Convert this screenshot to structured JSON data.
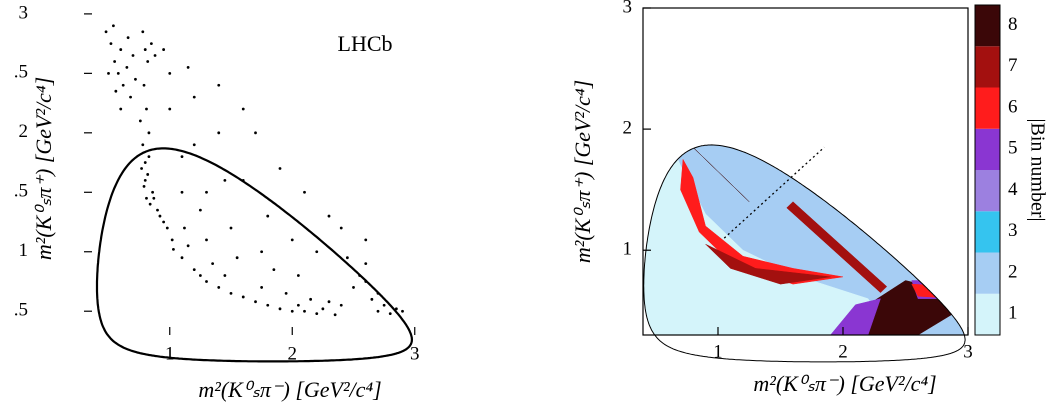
{
  "chart_data": [
    {
      "type": "scatter",
      "annotation": "LHCb",
      "x_label": "m²(K⁰ₛπ⁻) [GeV²/c⁴]",
      "y_label": "m²(K⁰ₛπ⁺) [GeV²/c⁴]",
      "color": "#000000",
      "x": [
        0.48,
        0.52,
        0.55,
        0.58,
        0.6,
        0.62,
        0.65,
        0.5,
        0.56,
        0.66,
        0.7,
        0.72,
        0.68,
        0.54,
        0.6,
        0.78,
        0.8,
        0.82,
        0.79,
        0.81,
        0.83,
        0.78,
        0.8,
        0.82,
        0.79,
        0.81,
        0.84,
        0.77,
        0.8,
        0.86,
        0.83,
        0.76,
        0.85,
        0.88,
        0.9,
        0.92,
        0.95,
        0.98,
        0.87,
        1.02,
        1.03,
        1.1,
        1.15,
        1.2,
        1.25,
        1.3,
        1.35,
        1.4,
        1.45,
        1.5,
        1.12,
        1.3,
        1.6,
        1.7,
        1.8,
        1.9,
        2.0,
        2.05,
        2.1,
        2.15,
        2.2,
        2.25,
        2.3,
        1.75,
        1.95,
        2.35,
        2.4,
        2.5,
        2.55,
        2.6,
        2.65,
        2.7,
        2.75,
        2.8,
        2.85,
        2.6,
        2.45,
        2.7,
        2.9,
        1.0,
        1.2,
        1.4,
        1.1,
        1.3,
        1.6,
        1.8,
        1.5,
        2.0,
        2.2,
        1.9,
        1.7,
        1.0,
        1.2,
        2.3,
        2.1,
        1.6,
        0.95,
        1.15,
        1.4,
        1.75,
        2.4,
        2.6,
        1.55,
        1.85,
        2.05,
        1.25,
        1.45,
        1.1
      ],
      "y": [
        2.85,
        2.75,
        2.6,
        2.5,
        2.7,
        2.4,
        2.55,
        2.5,
        2.35,
        2.8,
        2.65,
        2.45,
        2.3,
        2.9,
        2.2,
        2.85,
        2.7,
        2.6,
        2.4,
        2.2,
        2.0,
        1.9,
        1.75,
        1.65,
        1.55,
        1.45,
        1.4,
        1.7,
        1.6,
        1.5,
        1.8,
        2.1,
        2.75,
        2.65,
        1.35,
        1.3,
        1.25,
        1.2,
        1.45,
        1.1,
        1.02,
        0.95,
        1.05,
        0.85,
        0.8,
        0.75,
        0.9,
        0.7,
        0.8,
        0.65,
        1.2,
        1.1,
        0.62,
        0.58,
        0.55,
        0.52,
        0.5,
        0.55,
        0.5,
        0.6,
        0.48,
        0.52,
        0.58,
        0.7,
        0.65,
        0.47,
        0.55,
        0.7,
        0.8,
        0.75,
        0.6,
        0.5,
        0.55,
        0.48,
        0.52,
        0.9,
        0.95,
        0.65,
        0.5,
        2.5,
        2.3,
        2.0,
        1.8,
        1.5,
        1.6,
        1.3,
        1.2,
        1.1,
        1.0,
        1.7,
        2.0,
        2.2,
        1.9,
        1.3,
        1.5,
        2.2,
        2.7,
        2.55,
        2.4,
        1.0,
        1.2,
        1.1,
        0.95,
        0.85,
        0.8,
        1.35,
        1.6,
        1.5
      ],
      "xlim": [
        0.3,
        3.1
      ],
      "ylim": [
        0.3,
        3.1
      ],
      "xticks": [
        1,
        2,
        3
      ],
      "yticks": [
        {
          "value": 0.5,
          "label": ".5"
        },
        1,
        {
          "value": 1.5,
          "label": ".5"
        },
        2,
        {
          "value": 2.5,
          "label": ".5"
        },
        3
      ]
    },
    {
      "type": "binned-dalitz",
      "x_label": "m²(K⁰ₛπ⁻) [GeV²/c⁴]",
      "y_label": "m²(K⁰ₛπ⁺) [GeV²/c⁴]",
      "colorbar_label": "|Bin number|",
      "bins": [
        1,
        2,
        3,
        4,
        5,
        6,
        7,
        8
      ],
      "colors": [
        "#d4f4fa",
        "#a6cdf3",
        "#35c4ef",
        "#9c80e0",
        "#8a36d2",
        "#ff1c1c",
        "#a3100f",
        "#3b0708"
      ],
      "regions": [
        {
          "bin": 2,
          "x": [
            0.4,
            3.0,
            3.0,
            0.4
          ],
          "y": [
            0.3,
            0.3,
            3.0,
            3.0
          ]
        },
        {
          "bin": 1,
          "x": [
            0.4,
            0.5,
            0.7,
            0.9,
            1.2,
            1.6,
            2.2,
            2.4,
            0.4
          ],
          "y": [
            2.4,
            2.2,
            1.7,
            1.3,
            1.0,
            0.8,
            0.6,
            0.3,
            0.3
          ]
        },
        {
          "bin": 6,
          "x": [
            0.72,
            0.8,
            0.9,
            1.2,
            1.6,
            2.0,
            1.6,
            1.1,
            0.85,
            0.7
          ],
          "y": [
            1.75,
            1.6,
            1.2,
            0.95,
            0.85,
            0.78,
            0.72,
            0.9,
            1.15,
            1.5
          ]
        },
        {
          "bin": 7,
          "x": [
            0.9,
            1.3,
            1.9,
            1.5,
            1.1
          ],
          "y": [
            1.05,
            0.85,
            0.78,
            0.72,
            0.85
          ]
        },
        {
          "bin": 8,
          "x": [
            0.4,
            0.8,
            1.2,
            1.5,
            1.85,
            2.0,
            1.8,
            1.4,
            1.0,
            0.6,
            0.4
          ],
          "y": [
            2.55,
            2.35,
            2.15,
            2.0,
            1.85,
            1.7,
            1.6,
            1.75,
            2.0,
            2.25,
            2.35
          ]
        },
        {
          "bin": 8,
          "x": [
            1.85,
            2.2,
            2.5,
            2.45,
            2.2,
            1.95,
            1.8
          ],
          "y": [
            1.85,
            1.6,
            1.1,
            0.9,
            1.2,
            1.45,
            1.6
          ]
        },
        {
          "bin": 8,
          "x": [
            0.6,
            1.2,
            1.25,
            0.65
          ],
          "y": [
            2.05,
            1.45,
            1.4,
            2.0
          ]
        },
        {
          "bin": 7,
          "x": [
            1.55,
            2.3,
            2.35,
            1.6
          ],
          "y": [
            1.35,
            0.65,
            0.7,
            1.4
          ]
        },
        {
          "bin": 8,
          "x": [
            2.0,
            2.2,
            2.5,
            2.9,
            3.0,
            2.6
          ],
          "y": [
            0.3,
            0.55,
            0.75,
            0.65,
            0.55,
            0.3
          ]
        },
        {
          "bin": 5,
          "x": [
            0.4,
            0.65,
            0.6,
            0.4
          ],
          "y": [
            3.0,
            3.0,
            2.6,
            2.55
          ]
        },
        {
          "bin": 5,
          "x": [
            1.9,
            2.1,
            2.3,
            2.2
          ],
          "y": [
            0.3,
            0.55,
            0.6,
            0.3
          ]
        },
        {
          "bin": 5,
          "x": [
            2.55,
            2.9,
            3.0,
            2.6
          ],
          "y": [
            0.75,
            0.75,
            0.6,
            0.6
          ]
        },
        {
          "bin": 4,
          "x": [
            0.95,
            1.4,
            1.5,
            1.2,
            0.95,
            0.9
          ],
          "y": [
            2.85,
            2.6,
            2.3,
            2.2,
            2.45,
            2.7
          ]
        },
        {
          "bin": 4,
          "x": [
            2.2,
            2.6,
            2.5,
            2.2
          ],
          "y": [
            1.6,
            1.2,
            0.95,
            1.2
          ]
        },
        {
          "bin": 3,
          "x": [
            0.85,
            1.2,
            1.1,
            0.9
          ],
          "y": [
            3.0,
            3.0,
            2.7,
            2.7
          ]
        },
        {
          "bin": 3,
          "x": [
            2.55,
            2.9,
            2.6,
            2.4
          ],
          "y": [
            1.3,
            0.8,
            0.85,
            1.2
          ]
        },
        {
          "bin": 6,
          "x": [
            0.7,
            0.85,
            0.8,
            0.72
          ],
          "y": [
            3.0,
            3.0,
            2.4,
            2.4
          ]
        },
        {
          "bin": 6,
          "x": [
            2.6,
            2.95,
            2.9,
            2.55
          ],
          "y": [
            0.62,
            0.6,
            0.7,
            0.72
          ]
        },
        {
          "bin": 7,
          "x": [
            0.62,
            0.72,
            0.72,
            0.62
          ],
          "y": [
            2.8,
            2.8,
            2.45,
            2.45
          ]
        }
      ],
      "symmetry_line": {
        "x": [
          1.05,
          1.85
        ],
        "y": [
          1.1,
          1.85
        ]
      },
      "xlim": [
        0.4,
        3.0
      ],
      "ylim": [
        0.3,
        3.0
      ],
      "xticks": [
        1,
        2,
        3
      ],
      "yticks": [
        1,
        2,
        3
      ]
    }
  ]
}
